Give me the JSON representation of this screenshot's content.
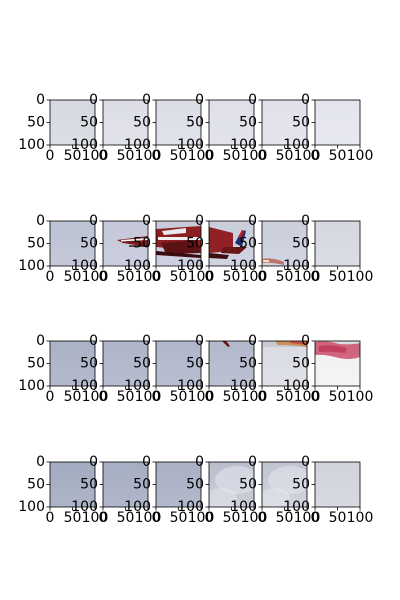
{
  "figure": {
    "background": "#ffffff",
    "rows": 4,
    "cols": 6,
    "frame_color": "#000000"
  },
  "chart_data": {
    "type": "image-grid",
    "title": "",
    "xlabel": "",
    "ylabel": "",
    "xlim": [
      0,
      100
    ],
    "ylim": [
      100,
      0
    ],
    "grid": false,
    "x_ticks": [
      "0",
      "50",
      "100"
    ],
    "y_ticks": [
      "0",
      "50",
      "100"
    ],
    "tiles": [
      {
        "row": 0,
        "col": 0,
        "content": "sky",
        "colors": [
          "#d7d9e1",
          "#d9dbe3",
          "#dcdee6"
        ]
      },
      {
        "row": 0,
        "col": 1,
        "content": "sky",
        "colors": [
          "#dcdde6",
          "#dfe0e8",
          "#e1e2ea"
        ]
      },
      {
        "row": 0,
        "col": 2,
        "content": "sky",
        "colors": [
          "#dcdee7",
          "#dee0e9",
          "#e0e2eb"
        ]
      },
      {
        "row": 0,
        "col": 3,
        "content": "sky",
        "colors": [
          "#dfe0e9",
          "#e0e1ea",
          "#e2e3ec"
        ]
      },
      {
        "row": 0,
        "col": 4,
        "content": "sky",
        "colors": [
          "#e0e1ea",
          "#e2e2ec",
          "#e3e4ee"
        ]
      },
      {
        "row": 0,
        "col": 5,
        "content": "sky",
        "colors": [
          "#e3e4ee",
          "#e5e6f0",
          "#e7e8f2"
        ]
      },
      {
        "row": 1,
        "col": 0,
        "content": "sky",
        "colors": [
          "#bcc2d3",
          "#c1c6d6",
          "#c5c9d9"
        ]
      },
      {
        "row": 1,
        "col": 1,
        "content": "jet-partial",
        "colors": [
          "#c3c7d8",
          "#c7cbdb",
          "#cacedf"
        ]
      },
      {
        "row": 1,
        "col": 2,
        "content": "jet-full",
        "colors": [
          "#c7cad9",
          "#cbcedc",
          "#ced1e0"
        ]
      },
      {
        "row": 1,
        "col": 3,
        "content": "jet-tail",
        "colors": [
          "#cacdda",
          "#cdd0dd",
          "#d0d3e1"
        ]
      },
      {
        "row": 1,
        "col": 4,
        "content": "smoke-low",
        "colors": [
          "#cbcedb",
          "#ced1de",
          "#d1d4e1"
        ]
      },
      {
        "row": 1,
        "col": 5,
        "content": "sky",
        "colors": [
          "#d5d7e1",
          "#d8dae3",
          "#dbdde6"
        ]
      },
      {
        "row": 2,
        "col": 0,
        "content": "sky",
        "colors": [
          "#aab2c6",
          "#afb6c9",
          "#b4bacd"
        ]
      },
      {
        "row": 2,
        "col": 1,
        "content": "sky",
        "colors": [
          "#aeb5c9",
          "#b3b9cc",
          "#b7bdd0"
        ]
      },
      {
        "row": 2,
        "col": 2,
        "content": "sky",
        "colors": [
          "#b0b6ca",
          "#b5bbce",
          "#b9bfd1"
        ]
      },
      {
        "row": 2,
        "col": 3,
        "content": "jet-tip",
        "colors": [
          "#b3b8cc",
          "#b7bccf",
          "#bcc0d3"
        ]
      },
      {
        "row": 2,
        "col": 4,
        "content": "smoke-top",
        "colors": [
          "#c6c8d4",
          "#cbcdd8",
          "#d0d2dc"
        ]
      },
      {
        "row": 2,
        "col": 5,
        "content": "smoke-red",
        "colors": [
          "#dadbe2",
          "#e4e5ea",
          "#eeeff2"
        ]
      },
      {
        "row": 3,
        "col": 0,
        "content": "sky",
        "colors": [
          "#a2abc0",
          "#a8b0c4",
          "#aeb5c8"
        ]
      },
      {
        "row": 3,
        "col": 1,
        "content": "sky",
        "colors": [
          "#a6aec3",
          "#abb2c6",
          "#b0b7ca"
        ]
      },
      {
        "row": 3,
        "col": 2,
        "content": "sky",
        "colors": [
          "#a9b0c5",
          "#aeb5c8",
          "#b3b9cb"
        ]
      },
      {
        "row": 3,
        "col": 3,
        "content": "cloud",
        "colors": [
          "#b8bdcc",
          "#c2c6d3",
          "#cccfd9"
        ]
      },
      {
        "row": 3,
        "col": 4,
        "content": "cloud",
        "colors": [
          "#c0c4d1",
          "#c9ccd7",
          "#d2d4dd"
        ]
      },
      {
        "row": 3,
        "col": 5,
        "content": "sky",
        "colors": [
          "#d0d2dc",
          "#d4d6df",
          "#d8dae2"
        ]
      }
    ]
  }
}
